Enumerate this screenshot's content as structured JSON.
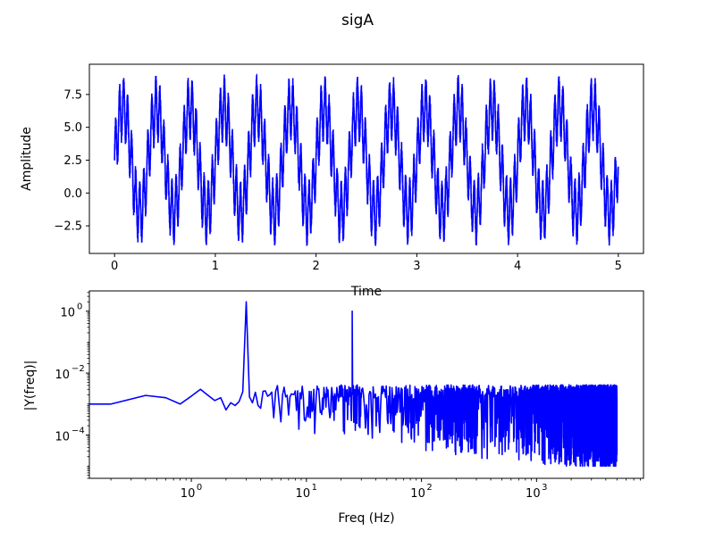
{
  "figure": {
    "title": "sigA"
  },
  "chart_data": [
    {
      "type": "line",
      "xlabel": "Time",
      "ylabel": "Amplitude",
      "xlim": [
        -0.25,
        5.25
      ],
      "ylim": [
        -4.6,
        9.8
      ],
      "xticks": [
        0,
        1,
        2,
        3,
        4,
        5
      ],
      "xtick_labels": [
        "0",
        "1",
        "2",
        "3",
        "4",
        "5"
      ],
      "yticks": [
        -2.5,
        0.0,
        2.5,
        5.0,
        7.5
      ],
      "ytick_labels": [
        "−2.5",
        "0.0",
        "2.5",
        "5.0",
        "7.5"
      ],
      "grid": false,
      "series": [
        {
          "color": "#0000ff",
          "signal_components": [
            {
              "type": "offset",
              "value": 2.5
            },
            {
              "type": "sine",
              "freq_hz": 3,
              "amplitude": 4.0
            },
            {
              "type": "sine",
              "freq_hz": 25,
              "amplitude": 2.0
            }
          ],
          "sample_rate_hz": 10000,
          "duration_s": 5,
          "envelope_range": [
            -4.0,
            9.1
          ]
        }
      ]
    },
    {
      "type": "line",
      "xlabel": "Freq (Hz)",
      "ylabel": "|Y(freq)|",
      "xscale": "log",
      "yscale": "log",
      "xlim": [
        0.13,
        8500
      ],
      "ylim": [
        4e-06,
        4.5
      ],
      "xticks": [
        1,
        10,
        100,
        1000
      ],
      "xtick_labels": [
        {
          "base": "10",
          "exp": "0"
        },
        {
          "base": "10",
          "exp": "1"
        },
        {
          "base": "10",
          "exp": "2"
        },
        {
          "base": "10",
          "exp": "3"
        }
      ],
      "yticks": [
        0.0001,
        0.01,
        1
      ],
      "ytick_labels": [
        {
          "base": "10",
          "exp": "−4"
        },
        {
          "base": "10",
          "exp": "−2"
        },
        {
          "base": "10",
          "exp": "0"
        }
      ],
      "grid": false,
      "series": [
        {
          "color": "#0000ff",
          "low_freq_points": [
            [
              0.13,
              0.001
            ],
            [
              0.2,
              0.001
            ],
            [
              0.4,
              0.0019
            ],
            [
              0.6,
              0.0016
            ],
            [
              0.8,
              0.001
            ],
            [
              1.0,
              0.0018
            ],
            [
              1.2,
              0.003
            ],
            [
              1.4,
              0.0019
            ],
            [
              1.6,
              0.0013
            ],
            [
              1.8,
              0.0016
            ],
            [
              2.0,
              0.00065
            ],
            [
              2.2,
              0.0011
            ],
            [
              2.4,
              0.0009
            ],
            [
              2.6,
              0.0012
            ],
            [
              2.8,
              0.0025
            ],
            [
              3.0,
              2.0
            ],
            [
              3.2,
              0.0017
            ],
            [
              3.4,
              0.0011
            ],
            [
              3.6,
              0.0024
            ],
            [
              3.8,
              0.0009
            ]
          ],
          "peaks": [
            {
              "freq_hz": 3,
              "value": 2.0
            },
            {
              "freq_hz": 25,
              "value": 1.0
            }
          ],
          "noise_floor_range": [
            1e-05,
            0.006
          ]
        }
      ]
    }
  ]
}
